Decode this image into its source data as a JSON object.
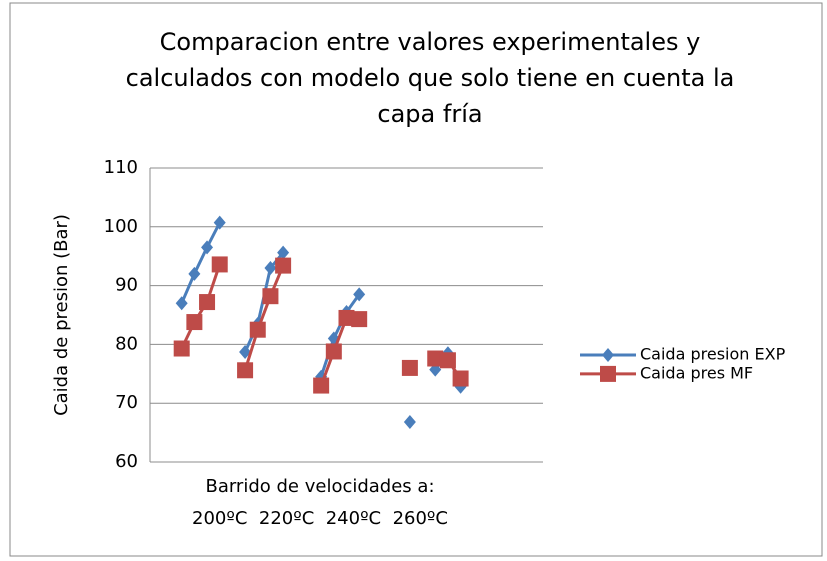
{
  "chart_data": {
    "type": "line",
    "title": "Comparacion entre valores experimentales y calculados con modelo que solo tiene en cuenta la capa fría",
    "y_label": "Caida de presion  (Bar)",
    "x_label": [
      "Barrido de velocidades a:",
      "200ºC  220ºC  240ºC  260ºC"
    ],
    "categories": [
      null,
      null,
      null,
      null,
      null,
      null,
      null,
      null,
      null,
      null,
      null,
      null,
      null,
      null,
      null,
      null,
      null,
      null,
      null,
      null,
      null,
      null,
      null,
      null,
      null,
      null,
      null,
      null,
      null,
      null,
      null
    ],
    "series": [
      {
        "name": "Caida presion EXP",
        "color": "#4a7ebb",
        "marker": "diamond",
        "values": [
          null,
          null,
          87,
          92,
          96.5,
          100.7,
          null,
          78.7,
          83.5,
          93,
          95.6,
          null,
          null,
          74.5,
          81,
          85.5,
          88.5,
          null,
          null,
          null,
          66.8,
          null,
          75.7,
          78.5,
          72.8,
          null,
          null,
          null,
          null,
          null,
          null
        ]
      },
      {
        "name": "Caida pres MF",
        "color": "#be4b48",
        "marker": "square",
        "values": [
          null,
          null,
          79.3,
          83.8,
          87.2,
          93.6,
          null,
          75.6,
          82.5,
          88.2,
          93.4,
          null,
          null,
          73,
          78.8,
          84.5,
          84.3,
          null,
          null,
          null,
          76,
          null,
          77.6,
          77.3,
          74.2,
          null,
          null,
          null,
          null,
          null,
          null
        ]
      }
    ],
    "ylim": [
      60,
      110
    ],
    "yticks": [
      60,
      70,
      80,
      90,
      100,
      110
    ],
    "grid": true,
    "legend": "right"
  }
}
